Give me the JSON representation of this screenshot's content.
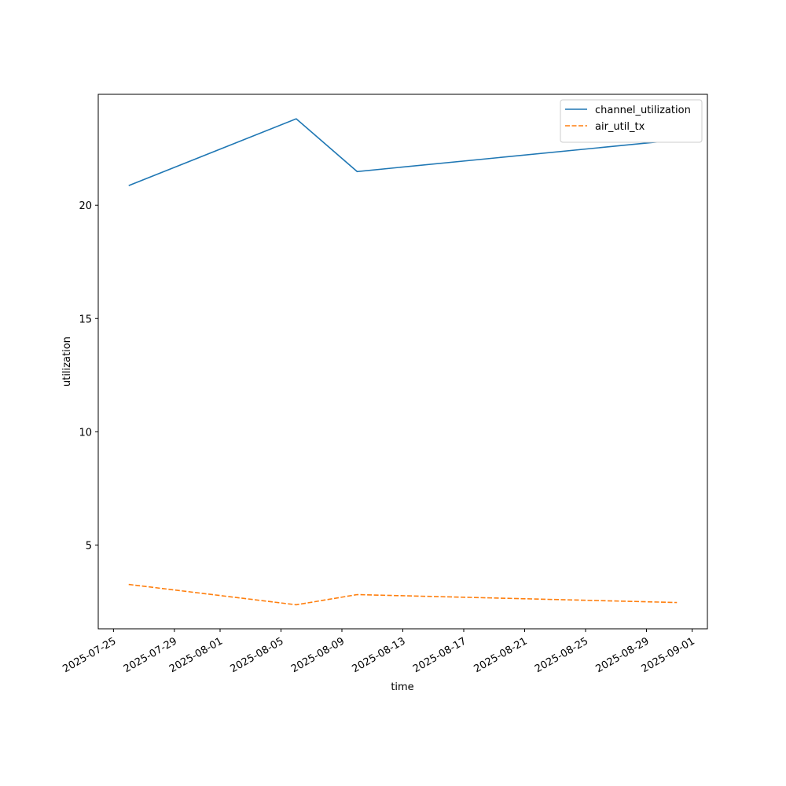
{
  "chart_data": {
    "type": "line",
    "x_label": "time",
    "y_label": "utilization",
    "x": [
      "2025-07-26",
      "2025-08-06",
      "2025-08-10",
      "2025-08-31"
    ],
    "series": [
      {
        "name": "channel_utilization",
        "color": "#1f77b4",
        "dash": "solid",
        "values": [
          20.87,
          23.82,
          21.49,
          22.88
        ]
      },
      {
        "name": "air_util_tx",
        "color": "#ff7f0e",
        "dash": "dashed",
        "values": [
          3.26,
          2.36,
          2.81,
          2.46
        ]
      }
    ],
    "xlim": [
      "2025-07-24",
      "2025-09-02"
    ],
    "xticks": [
      "2025-07-25",
      "2025-07-29",
      "2025-08-01",
      "2025-08-05",
      "2025-08-09",
      "2025-08-13",
      "2025-08-17",
      "2025-08-21",
      "2025-08-25",
      "2025-08-29",
      "2025-09-01"
    ],
    "ylim": [
      1.3,
      24.9
    ],
    "yticks": [
      5,
      10,
      15,
      20
    ],
    "legend": "upper right",
    "grid": false
  }
}
